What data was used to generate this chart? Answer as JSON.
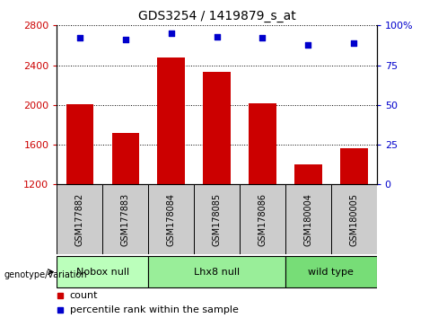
{
  "title": "GDS3254 / 1419879_s_at",
  "samples": [
    "GSM177882",
    "GSM177883",
    "GSM178084",
    "GSM178085",
    "GSM178086",
    "GSM180004",
    "GSM180005"
  ],
  "bar_values": [
    2010,
    1720,
    2480,
    2330,
    2020,
    1400,
    1560
  ],
  "percentile_values": [
    92,
    91,
    95,
    93,
    92,
    88,
    89
  ],
  "groups": [
    {
      "label": "Nobox null",
      "start": 0,
      "end": 2,
      "color": "#bbffbb"
    },
    {
      "label": "Lhx8 null",
      "start": 2,
      "end": 5,
      "color": "#99ee99"
    },
    {
      "label": "wild type",
      "start": 5,
      "end": 7,
      "color": "#77dd77"
    }
  ],
  "bar_color": "#cc0000",
  "dot_color": "#0000cc",
  "ylim_left": [
    1200,
    2800
  ],
  "ylim_right": [
    0,
    100
  ],
  "yticks_left": [
    1200,
    1600,
    2000,
    2400,
    2800
  ],
  "yticks_right": [
    0,
    25,
    50,
    75,
    100
  ],
  "ylabel_left_color": "#cc0000",
  "ylabel_right_color": "#0000cc",
  "grid_color": "#000000",
  "tick_bg_color": "#cccccc",
  "bar_width": 0.6,
  "legend_count_color": "#cc0000",
  "legend_percentile_color": "#0000cc",
  "fig_width": 4.88,
  "fig_height": 3.54,
  "dpi": 100
}
